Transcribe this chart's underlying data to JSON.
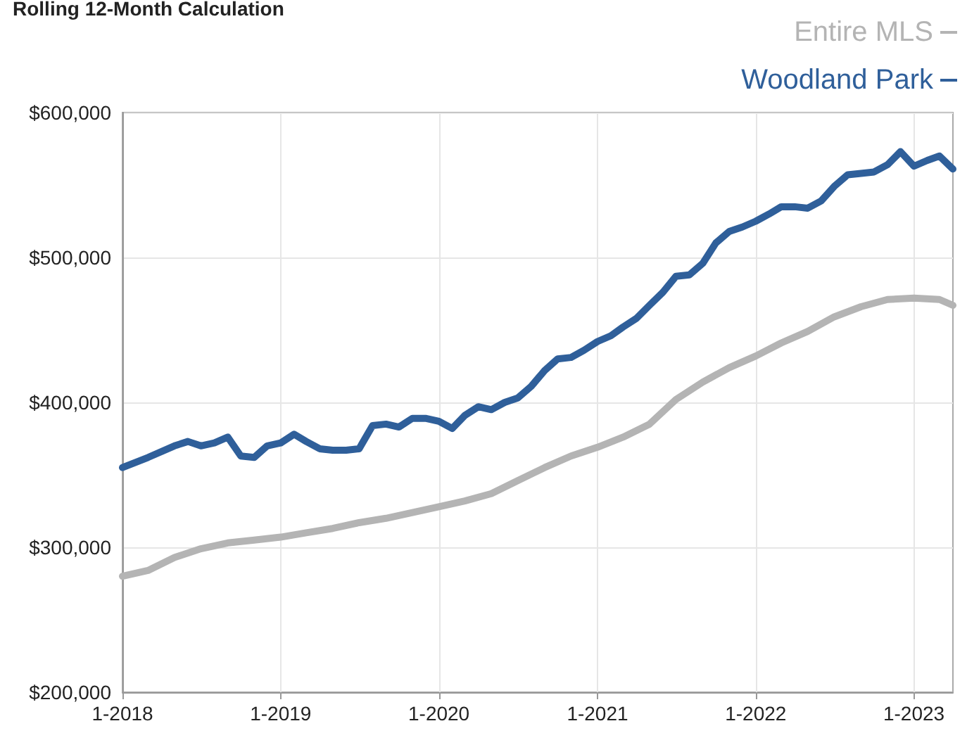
{
  "chart_data": {
    "type": "line",
    "title": "Rolling 12-Month Calculation",
    "xlim": [
      "2018-01",
      "2023-04"
    ],
    "xticks": [
      {
        "value": "2018-01",
        "label": "1-2018"
      },
      {
        "value": "2019-01",
        "label": "1-2019"
      },
      {
        "value": "2020-01",
        "label": "1-2020"
      },
      {
        "value": "2021-01",
        "label": "1-2021"
      },
      {
        "value": "2022-01",
        "label": "1-2022"
      },
      {
        "value": "2023-01",
        "label": "1-2023"
      }
    ],
    "ylim": [
      200000,
      600000
    ],
    "yticks": [
      {
        "value": 200000,
        "label": "$200,000"
      },
      {
        "value": 300000,
        "label": "$300,000"
      },
      {
        "value": 400000,
        "label": "$400,000"
      },
      {
        "value": 500000,
        "label": "$500,000"
      },
      {
        "value": 600000,
        "label": "$600,000"
      }
    ],
    "grid": true,
    "legend": "top right",
    "marker": "none",
    "line_style": "solid",
    "series": [
      {
        "name": "Entire MLS",
        "color": "#b4b4b4",
        "x": [
          "2018-01",
          "2018-03",
          "2018-05",
          "2018-07",
          "2018-09",
          "2018-11",
          "2019-01",
          "2019-03",
          "2019-05",
          "2019-07",
          "2019-09",
          "2019-11",
          "2020-01",
          "2020-03",
          "2020-05",
          "2020-07",
          "2020-09",
          "2020-11",
          "2021-01",
          "2021-03",
          "2021-05",
          "2021-07",
          "2021-09",
          "2021-11",
          "2022-01",
          "2022-03",
          "2022-05",
          "2022-07",
          "2022-09",
          "2022-11",
          "2023-01",
          "2023-03",
          "2023-04"
        ],
        "values": [
          280000,
          284000,
          293000,
          299000,
          303000,
          305000,
          307000,
          310000,
          313000,
          317000,
          320000,
          324000,
          328000,
          332000,
          337000,
          346000,
          355000,
          363000,
          369000,
          376000,
          385000,
          402000,
          414000,
          424000,
          432000,
          441000,
          449000,
          459000,
          466000,
          471000,
          472000,
          471000,
          467000
        ]
      },
      {
        "name": "Woodland Park",
        "color": "#2f5f9a",
        "x": [
          "2018-01",
          "2018-03",
          "2018-05",
          "2018-06",
          "2018-07",
          "2018-08",
          "2018-09",
          "2018-10",
          "2018-11",
          "2018-12",
          "2019-01",
          "2019-02",
          "2019-03",
          "2019-04",
          "2019-05",
          "2019-06",
          "2019-07",
          "2019-08",
          "2019-09",
          "2019-10",
          "2019-11",
          "2019-12",
          "2020-01",
          "2020-02",
          "2020-03",
          "2020-04",
          "2020-05",
          "2020-06",
          "2020-07",
          "2020-08",
          "2020-09",
          "2020-10",
          "2020-11",
          "2020-12",
          "2021-01",
          "2021-02",
          "2021-03",
          "2021-04",
          "2021-05",
          "2021-06",
          "2021-07",
          "2021-08",
          "2021-09",
          "2021-10",
          "2021-11",
          "2021-12",
          "2022-01",
          "2022-02",
          "2022-03",
          "2022-04",
          "2022-05",
          "2022-06",
          "2022-07",
          "2022-08",
          "2022-09",
          "2022-10",
          "2022-11",
          "2022-12",
          "2023-01",
          "2023-02",
          "2023-03",
          "2023-04"
        ],
        "values": [
          355000,
          362000,
          370000,
          373000,
          370000,
          372000,
          376000,
          363000,
          362000,
          370000,
          372000,
          378000,
          373000,
          368000,
          367000,
          367000,
          368000,
          384000,
          385000,
          383000,
          389000,
          389000,
          387000,
          382000,
          391000,
          397000,
          395000,
          400000,
          403000,
          411000,
          422000,
          430000,
          431000,
          436000,
          442000,
          446000,
          452000,
          458000,
          467000,
          476000,
          487000,
          488000,
          496000,
          510000,
          518000,
          521000,
          525000,
          530000,
          535000,
          535000,
          534000,
          539000,
          549000,
          557000,
          558000,
          559000,
          564000,
          573000,
          563000,
          567000,
          570000,
          561000
        ]
      }
    ]
  }
}
